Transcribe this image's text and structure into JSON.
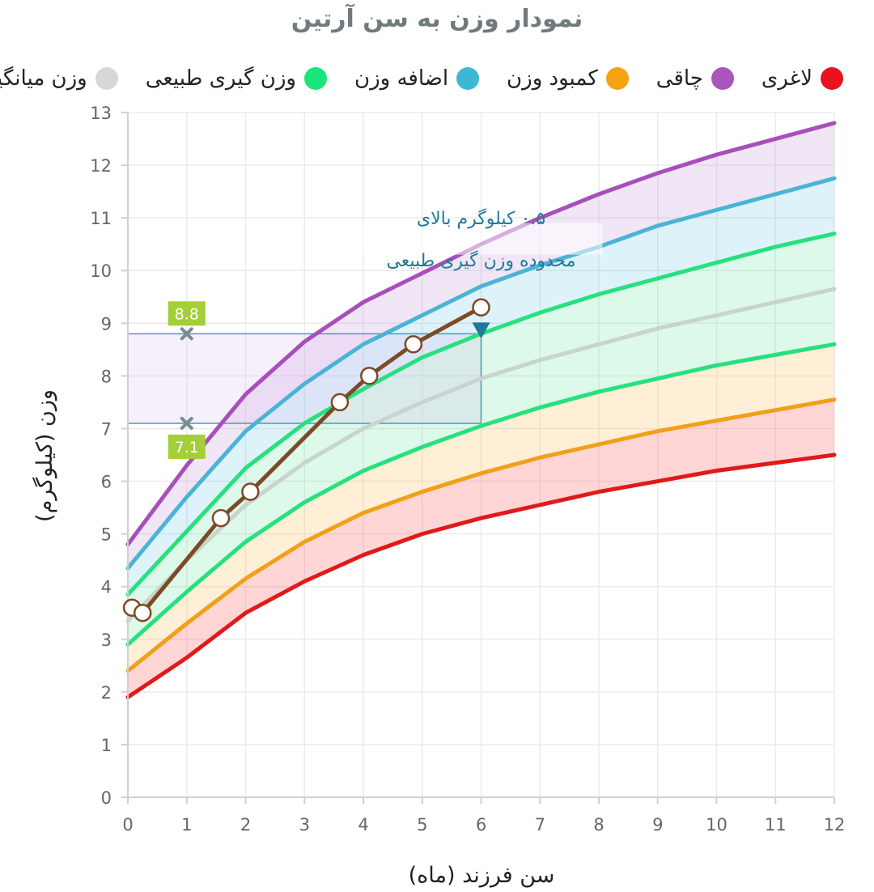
{
  "chart_data": {
    "type": "line",
    "title": "نمودار وزن به سن آرتین",
    "xlabel": "سن فرزند (ماه)",
    "ylabel": "وزن (کیلوگرم)",
    "xlim": [
      0,
      12
    ],
    "ylim": [
      0,
      13
    ],
    "x_ticks": [
      0,
      1,
      2,
      3,
      4,
      5,
      6,
      7,
      8,
      9,
      10,
      11,
      12
    ],
    "y_ticks": [
      0,
      1,
      2,
      3,
      4,
      5,
      6,
      7,
      8,
      9,
      10,
      11,
      12,
      13
    ],
    "grid": true,
    "legend": [
      {
        "label": "لاغری",
        "color": "#e8131f"
      },
      {
        "label": "چاقی",
        "color": "#a955bb"
      },
      {
        "label": "کمبود وزن",
        "color": "#f6a215"
      },
      {
        "label": "اضافه وزن",
        "color": "#3cb8d6"
      },
      {
        "label": "وزن گیری طبیعی",
        "color": "#19e57b"
      },
      {
        "label": "وزن میانگین",
        "color": "#d7d7d7"
      }
    ],
    "x": [
      0,
      1,
      2,
      3,
      4,
      5,
      6,
      7,
      8,
      9,
      10,
      11,
      12
    ],
    "series": [
      {
        "name": "لاغری",
        "color": "#e01a1a",
        "fill": "rgba(255,105,105,0.28)",
        "values": [
          1.9,
          2.65,
          3.5,
          4.1,
          4.6,
          5.0,
          5.3,
          5.55,
          5.8,
          6.0,
          6.2,
          6.35,
          6.5
        ]
      },
      {
        "name": "کمبود وزن",
        "color": "#f0a01a",
        "fill": "rgba(250,190,90,0.25)",
        "values": [
          2.4,
          3.3,
          4.15,
          4.85,
          5.4,
          5.8,
          6.15,
          6.45,
          6.7,
          6.95,
          7.15,
          7.35,
          7.55
        ]
      },
      {
        "name": "وزن گیری طبیعی",
        "color": "#27e07f",
        "fill": "rgba(80,225,150,0.20)",
        "values": [
          2.9,
          3.9,
          4.85,
          5.6,
          6.2,
          6.65,
          7.05,
          7.4,
          7.7,
          7.95,
          8.2,
          8.4,
          8.6
        ]
      },
      {
        "name": "وزن میانگین",
        "color": "#c8d4cc",
        "fill": "rgba(80,225,150,0.20)",
        "values": [
          3.35,
          4.5,
          5.55,
          6.35,
          7.0,
          7.5,
          7.95,
          8.3,
          8.6,
          8.9,
          9.15,
          9.4,
          9.65
        ]
      },
      {
        "name": "وزن گیری طبیعی",
        "color": "#27e07f",
        "fill": "rgba(90,190,225,0.20)",
        "values": [
          3.85,
          5.05,
          6.25,
          7.1,
          7.75,
          8.35,
          8.8,
          9.2,
          9.55,
          9.85,
          10.15,
          10.45,
          10.7
        ]
      },
      {
        "name": "اضافه وزن",
        "color": "#4ab4d6",
        "fill": "rgba(190,140,215,0.22)",
        "values": [
          4.35,
          5.7,
          6.95,
          7.85,
          8.6,
          9.15,
          9.7,
          10.1,
          10.45,
          10.85,
          11.15,
          11.45,
          11.75
        ]
      },
      {
        "name": "چاقی",
        "color": "#a74fba",
        "fill": null,
        "values": [
          4.8,
          6.3,
          7.65,
          8.65,
          9.4,
          9.95,
          10.5,
          11.0,
          11.45,
          11.85,
          12.2,
          12.5,
          12.8
        ]
      }
    ],
    "child": {
      "name": "آرتین",
      "color": "#7c4a25",
      "x": [
        0.07,
        0.25,
        1.58,
        2.08,
        3.6,
        4.1,
        4.85,
        6.0
      ],
      "y": [
        3.6,
        3.5,
        5.3,
        5.8,
        7.5,
        8.0,
        8.6,
        9.3
      ]
    },
    "range_markers": {
      "x": 1,
      "upper": 8.8,
      "lower": 7.1,
      "upper_label": "8.8",
      "lower_label": "7.1"
    },
    "annotation": {
      "line1": "۰.۵ کیلوگرم بالای",
      "line2": "محدوده وزن گیری طبیعی",
      "at_x": 6
    }
  }
}
